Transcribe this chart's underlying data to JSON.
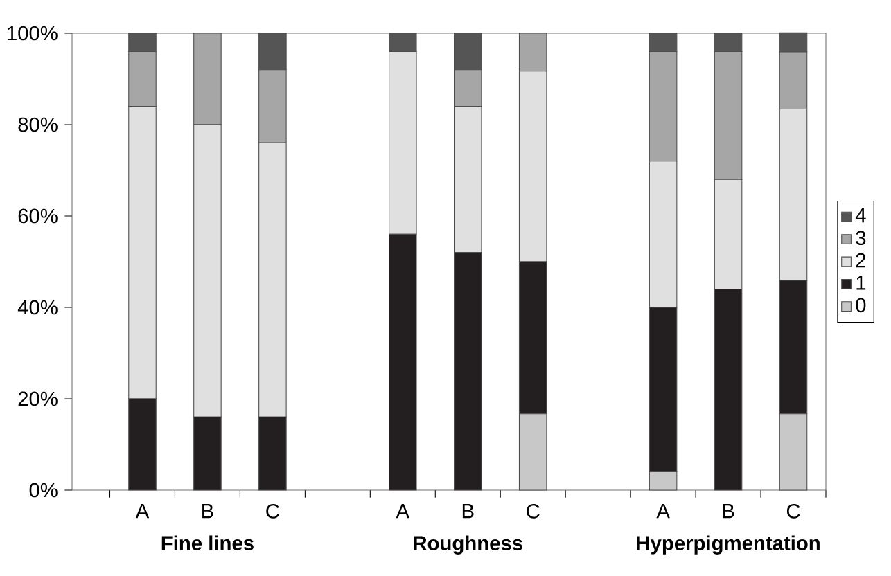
{
  "chart_data": {
    "type": "bar",
    "stacked": true,
    "categories": [
      "A",
      "B",
      "C",
      null,
      "A",
      "B",
      "C",
      null,
      "A",
      "B",
      "C"
    ],
    "series": [
      {
        "name": "0",
        "color": "#c8c8c8",
        "values": [
          0,
          0,
          0,
          null,
          0,
          0,
          16.7,
          null,
          4,
          0,
          16.7
        ]
      },
      {
        "name": "1",
        "color": "#231f20",
        "values": [
          20,
          16,
          16,
          null,
          56,
          52,
          33.3,
          null,
          36,
          44,
          29.2
        ]
      },
      {
        "name": "2",
        "color": "#e0e0e0",
        "values": [
          64,
          64,
          60,
          null,
          40,
          32,
          41.7,
          null,
          32,
          24,
          37.5
        ]
      },
      {
        "name": "3",
        "color": "#a6a6a6",
        "values": [
          12,
          20,
          16,
          null,
          0,
          8,
          8.3,
          null,
          24,
          28,
          12.5
        ]
      },
      {
        "name": "4",
        "color": "#555555",
        "values": [
          4,
          0,
          8,
          null,
          4,
          8,
          0,
          null,
          4,
          4,
          4.2
        ]
      }
    ],
    "ylim": [
      0,
      100
    ],
    "yticks": [
      {
        "value": 0,
        "label": "0%"
      },
      {
        "value": 20,
        "label": "20%"
      },
      {
        "value": 40,
        "label": "40%"
      },
      {
        "value": 60,
        "label": "60%"
      },
      {
        "value": 80,
        "label": "80%"
      },
      {
        "value": 100,
        "label": "100%"
      }
    ],
    "legend": "right",
    "grid": false,
    "annotations": [
      "Fine lines",
      "Roughness",
      "Hyperpigmentation"
    ]
  }
}
